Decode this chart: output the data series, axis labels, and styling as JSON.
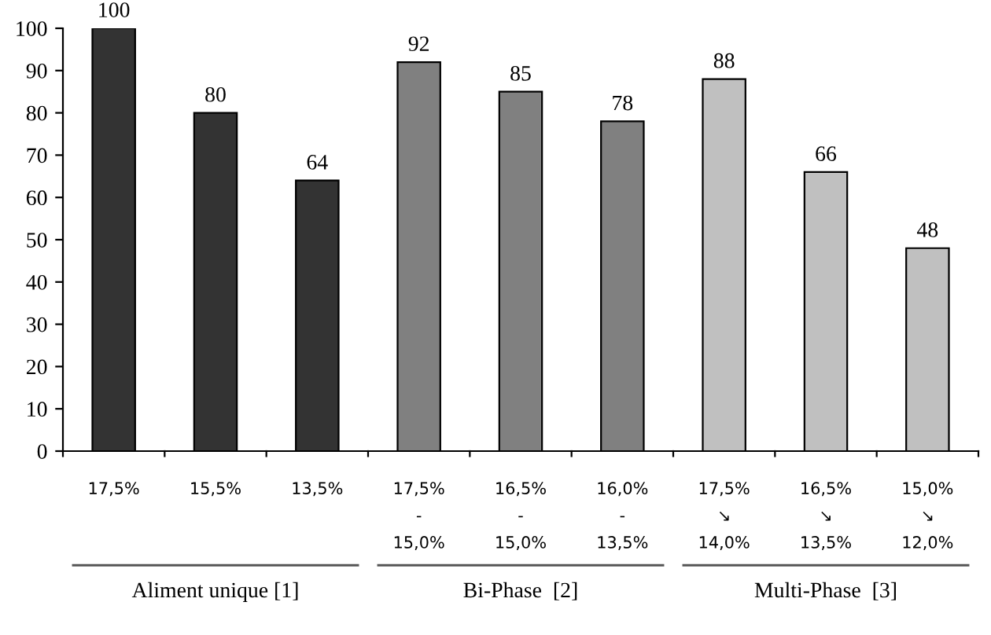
{
  "chart_data": {
    "type": "bar",
    "categories": [
      "17,5%",
      "15,5%",
      "13,5%",
      "17,5%\n-\n15,0%",
      "16,5%\n-\n15,0%",
      "16,0%\n-\n13,5%",
      "17,5%\n↘\n14,0%",
      "16,5%\n↘\n13,5%",
      "15,0%\n↘\n12,0%"
    ],
    "values": [
      100,
      80,
      64,
      92,
      85,
      78,
      88,
      66,
      48
    ],
    "colors": [
      "#333333",
      "#333333",
      "#333333",
      "#808080",
      "#808080",
      "#808080",
      "#c0c0c0",
      "#c0c0c0",
      "#c0c0c0"
    ],
    "ylim": [
      0,
      100
    ],
    "yticks": [
      0,
      10,
      20,
      30,
      40,
      50,
      60,
      70,
      80,
      90,
      100
    ],
    "data_labels": true,
    "grid": false,
    "legend": false,
    "annotations": [
      "Aliment unique [1]",
      "Bi-Phase  [2]",
      "Multi-Phase  [3]"
    ]
  }
}
